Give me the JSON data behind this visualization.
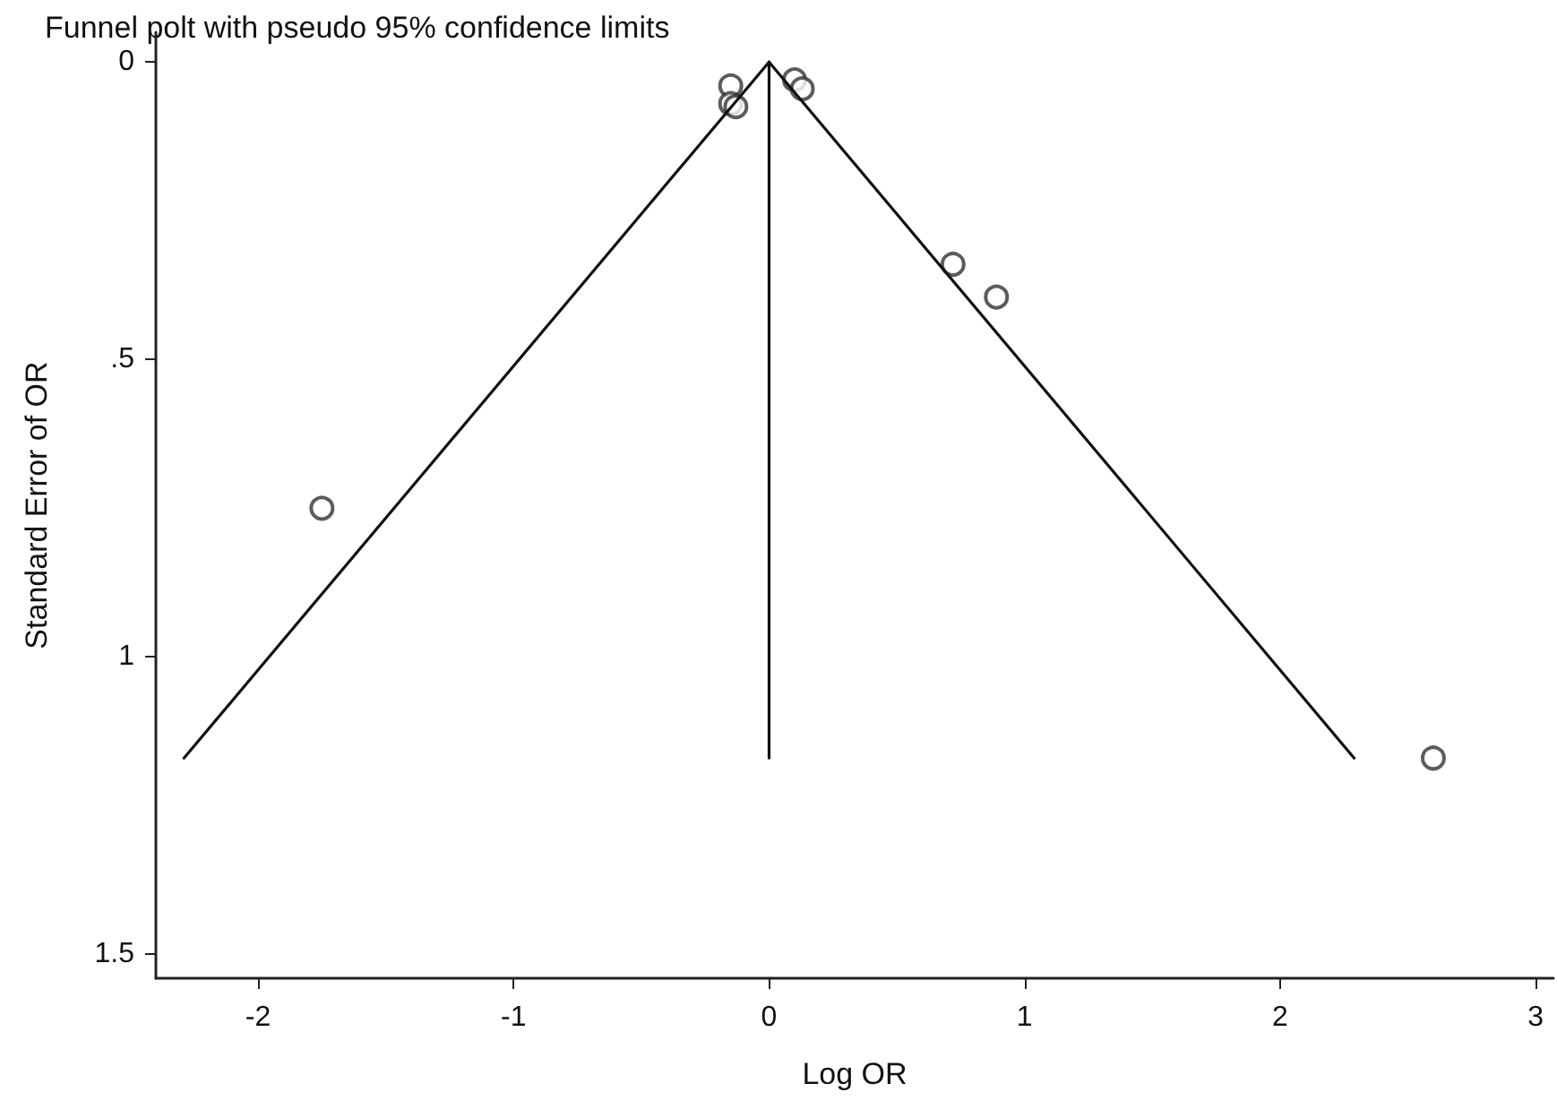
{
  "chart_data": {
    "type": "scatter",
    "title": "Funnel polt with pseudo 95% confidence limits",
    "xlabel": "Log OR",
    "ylabel": "Standard Error of OR",
    "series": [
      {
        "color": "#333333",
        "marker": "circle",
        "x": [
          -1.75,
          -0.15,
          -0.15,
          -0.13,
          0.1,
          0.13,
          0.72,
          0.89,
          2.6
        ],
        "values": [
          0.75,
          0.04,
          0.07,
          0.075,
          0.03,
          0.045,
          0.34,
          0.395,
          1.17
        ]
      },
      {
        "type": "line",
        "color": "#111111",
        "marker": "none",
        "x": [
          -2.29,
          0,
          0
        ],
        "values": [
          1.17,
          0,
          1.17
        ]
      },
      {
        "type": "line",
        "color": "#111111",
        "marker": "none",
        "x": [
          0,
          2.29
        ],
        "values": [
          0,
          1.17
        ]
      }
    ],
    "line_style": "solid",
    "legend": false,
    "xlim": [
      -2.4,
      3.07
    ],
    "xticks": [
      -2,
      -1,
      0,
      1,
      2,
      3
    ],
    "ylim": [
      1.54,
      -0.05
    ],
    "yticks": [
      0,
      {
        "value": 0.5,
        "label": ".5"
      },
      1,
      1.5
    ]
  }
}
